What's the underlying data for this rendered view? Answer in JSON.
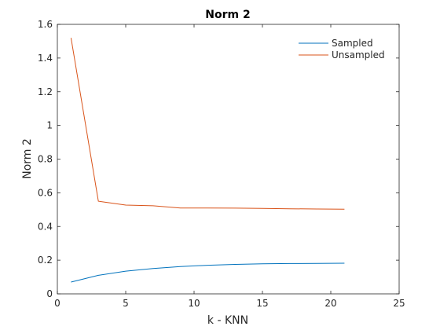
{
  "chart_data": {
    "type": "line",
    "title": "Norm 2",
    "xlabel": "k - KNN",
    "ylabel": "Norm 2",
    "xlim": [
      0,
      25
    ],
    "ylim": [
      0,
      1.6
    ],
    "xticks": [
      0,
      5,
      10,
      15,
      20,
      25
    ],
    "xtick_labels": [
      "0",
      "5",
      "10",
      "15",
      "20",
      "25"
    ],
    "yticks": [
      0,
      0.2,
      0.4,
      0.6,
      0.8,
      1,
      1.2,
      1.4,
      1.6
    ],
    "ytick_labels": [
      "0",
      "0.2",
      "0.4",
      "0.6",
      "0.8",
      "1",
      "1.2",
      "1.4",
      "1.6"
    ],
    "grid": false,
    "legend_position": "top-right",
    "x": [
      1,
      3,
      5,
      7,
      9,
      11,
      13,
      15,
      17,
      19,
      21
    ],
    "series": [
      {
        "name": "Sampled",
        "color": "#0072BD",
        "values": [
          0.07,
          0.11,
          0.135,
          0.15,
          0.162,
          0.17,
          0.175,
          0.178,
          0.18,
          0.181,
          0.182
        ]
      },
      {
        "name": "Unsampled",
        "color": "#D95319",
        "values": [
          1.52,
          0.55,
          0.527,
          0.523,
          0.51,
          0.51,
          0.509,
          0.507,
          0.505,
          0.504,
          0.503
        ]
      }
    ]
  }
}
